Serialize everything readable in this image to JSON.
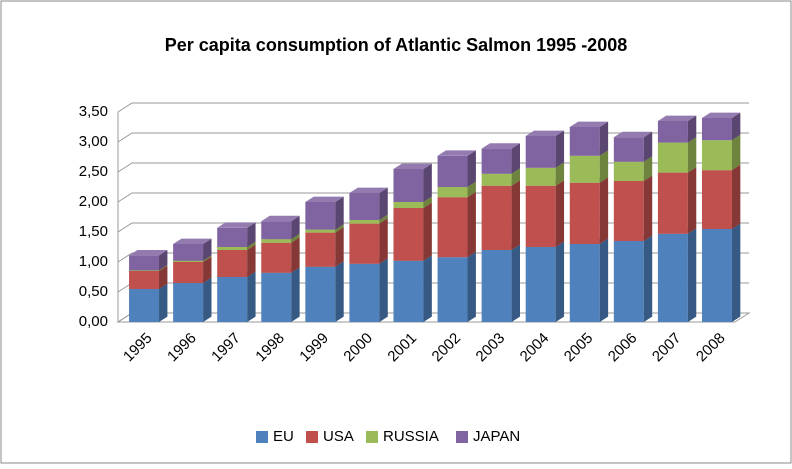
{
  "chart_data": {
    "type": "bar3d_stacked",
    "title": "Per capita consumption of Atlantic Salmon 1995 -2008",
    "categories": [
      "1995",
      "1996",
      "1997",
      "1998",
      "1999",
      "2000",
      "2001",
      "2002",
      "2003",
      "2004",
      "2005",
      "2006",
      "2007",
      "2008"
    ],
    "series": [
      {
        "name": "EU",
        "color": "#4f81bd",
        "values": [
          0.55,
          0.65,
          0.75,
          0.82,
          0.92,
          0.97,
          1.02,
          1.08,
          1.2,
          1.25,
          1.3,
          1.35,
          1.47,
          1.55
        ]
      },
      {
        "name": "USA",
        "color": "#c0504d",
        "values": [
          0.3,
          0.35,
          0.45,
          0.5,
          0.57,
          0.67,
          0.88,
          1.0,
          1.07,
          1.02,
          1.02,
          1.0,
          1.02,
          0.98
        ]
      },
      {
        "name": "RUSSIA",
        "color": "#9bbb59",
        "values": [
          0.01,
          0.02,
          0.05,
          0.06,
          0.05,
          0.06,
          0.1,
          0.17,
          0.2,
          0.3,
          0.45,
          0.32,
          0.5,
          0.5
        ]
      },
      {
        "name": "JAPAN",
        "color": "#8064a2",
        "values": [
          0.25,
          0.28,
          0.32,
          0.3,
          0.46,
          0.45,
          0.55,
          0.52,
          0.42,
          0.53,
          0.48,
          0.41,
          0.36,
          0.37
        ]
      }
    ],
    "ylim": [
      0,
      3.5
    ],
    "yticks": [
      {
        "value": 0,
        "label": "0,00"
      },
      {
        "value": 0.5,
        "label": "0,50"
      },
      {
        "value": 1,
        "label": "1,00"
      },
      {
        "value": 1.5,
        "label": "1,50"
      },
      {
        "value": 2,
        "label": "2,00"
      },
      {
        "value": 2.5,
        "label": "2,50"
      },
      {
        "value": 3,
        "label": "3,00"
      },
      {
        "value": 3.5,
        "label": "3,50"
      }
    ],
    "grid": true,
    "legend": "bottom"
  }
}
